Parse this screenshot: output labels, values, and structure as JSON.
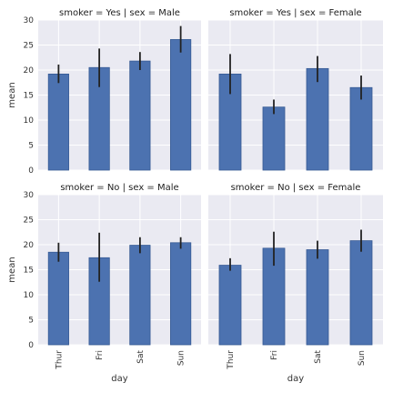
{
  "chart_data": [
    {
      "type": "bar",
      "title": "smoker = Yes | sex = Male",
      "categories": [
        "Thur",
        "Fri",
        "Sat",
        "Sun"
      ],
      "values": [
        19.2,
        20.5,
        21.8,
        26.1
      ],
      "error_low": [
        17.4,
        16.6,
        20.0,
        23.5
      ],
      "error_high": [
        21.1,
        24.3,
        23.6,
        28.8
      ],
      "xlabel": "",
      "ylabel": "mean",
      "ylim": [
        0,
        30
      ],
      "yticks": [
        "0",
        "5",
        "10",
        "15",
        "20",
        "25",
        "30"
      ]
    },
    {
      "type": "bar",
      "title": "smoker = Yes | sex = Female",
      "categories": [
        "Thur",
        "Fri",
        "Sat",
        "Sun"
      ],
      "values": [
        19.2,
        12.6,
        20.3,
        16.5
      ],
      "error_low": [
        15.2,
        11.2,
        17.6,
        14.1
      ],
      "error_high": [
        23.2,
        14.1,
        22.8,
        18.9
      ],
      "xlabel": "",
      "ylabel": "",
      "ylim": [
        0,
        30
      ],
      "yticks": []
    },
    {
      "type": "bar",
      "title": "smoker = No | sex = Male",
      "categories": [
        "Thur",
        "Fri",
        "Sat",
        "Sun"
      ],
      "values": [
        18.5,
        17.4,
        19.9,
        20.4
      ],
      "error_low": [
        16.6,
        12.6,
        18.3,
        19.2
      ],
      "error_high": [
        20.4,
        22.4,
        21.5,
        21.5
      ],
      "xlabel": "day",
      "ylabel": "mean",
      "ylim": [
        0,
        30
      ],
      "yticks": [
        "0",
        "5",
        "10",
        "15",
        "20",
        "25",
        "30"
      ]
    },
    {
      "type": "bar",
      "title": "smoker = No | sex = Female",
      "categories": [
        "Thur",
        "Fri",
        "Sat",
        "Sun"
      ],
      "values": [
        15.9,
        19.3,
        19.0,
        20.8
      ],
      "error_low": [
        14.8,
        15.8,
        17.2,
        18.6
      ],
      "error_high": [
        17.3,
        22.6,
        20.8,
        23.0
      ],
      "xlabel": "day",
      "ylabel": "",
      "ylim": [
        0,
        30
      ],
      "yticks": []
    }
  ],
  "colors": {
    "bar": "#4c72b0",
    "bar_edge": "#365a94",
    "error": "#222222",
    "panel_bg": "#eaeaf2",
    "grid": "#ffffff"
  },
  "grid": true
}
